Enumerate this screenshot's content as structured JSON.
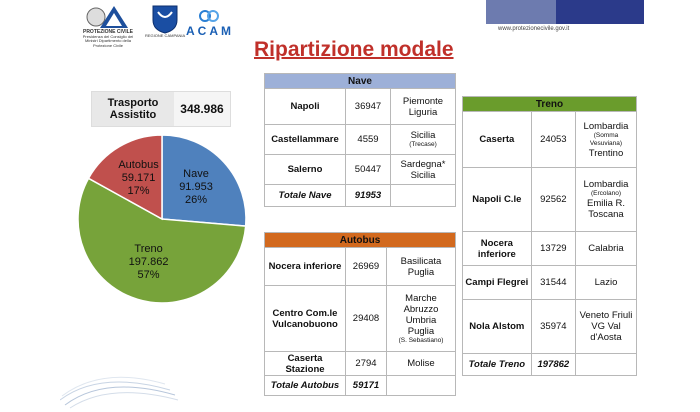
{
  "header": {
    "logo1_text": "PROTEZIONE CIVILE",
    "logo1_sub": "Presidenza del Consiglio dei Ministri Dipartimento della Protezione Civile",
    "logo2_sub": "REGIONE CAMPANIA",
    "logo3_text": "ACAM",
    "website": "www.protezionecivile.gov.it"
  },
  "title": "Ripartizione modale",
  "summary": {
    "label": "Trasporto Assistito",
    "value": "348.986"
  },
  "chart_data": {
    "type": "pie",
    "slices": [
      {
        "name": "Nave",
        "value": 91953,
        "value_label": "91.953",
        "percent": "26%",
        "color": "#4f81bd"
      },
      {
        "name": "Treno",
        "value": 197862,
        "value_label": "197.862",
        "percent": "57%",
        "color": "#77a33a"
      },
      {
        "name": "Autobus",
        "value": 59171,
        "value_label": "59.171",
        "percent": "17%",
        "color": "#c0504d"
      }
    ]
  },
  "nave": {
    "header": "Nave",
    "rows": [
      {
        "name": "Napoli",
        "value": "36947",
        "dest": "Piemonte Liguria",
        "note": ""
      },
      {
        "name": "Castellammare",
        "value": "4559",
        "dest": "Sicilia",
        "note": "(Trecase)"
      },
      {
        "name": "Salerno",
        "value": "50447",
        "dest": "Sardegna* Sicilia",
        "note": ""
      }
    ],
    "total_label": "Totale Nave",
    "total_value": "91953"
  },
  "autobus": {
    "header": "Autobus",
    "rows": [
      {
        "name": "Nocera inferiore",
        "value": "26969",
        "dest": "Basilicata Puglia",
        "note": ""
      },
      {
        "name": "Centro Com.le Vulcanobuono",
        "value": "29408",
        "dest": "Marche Abruzzo Umbria Puglia",
        "note": "(S. Sebastiano)"
      },
      {
        "name": "Caserta Stazione",
        "value": "2794",
        "dest": "Molise",
        "note": ""
      }
    ],
    "total_label": "Totale Autobus",
    "total_value": "59171"
  },
  "treno": {
    "header": "Treno",
    "rows": [
      {
        "name": "Caserta",
        "value": "24053",
        "dest1": "Lombardia",
        "note": "(Somma Vesuviana)",
        "dest2": "Trentino"
      },
      {
        "name": "Napoli C.le",
        "value": "92562",
        "dest1": "Lombardia",
        "note": "(Ercolano)",
        "dest2": "Emilia R. Toscana"
      },
      {
        "name": "Nocera inferiore",
        "value": "13729",
        "dest1": "Calabria",
        "note": "",
        "dest2": ""
      },
      {
        "name": "Campi Flegrei",
        "value": "31544",
        "dest1": "Lazio",
        "note": "",
        "dest2": ""
      },
      {
        "name": "Nola Alstom",
        "value": "35974",
        "dest1": "Veneto Friuli VG Val d'Aosta",
        "note": "",
        "dest2": ""
      }
    ],
    "total_label": "Totale Treno",
    "total_value": "197862"
  }
}
